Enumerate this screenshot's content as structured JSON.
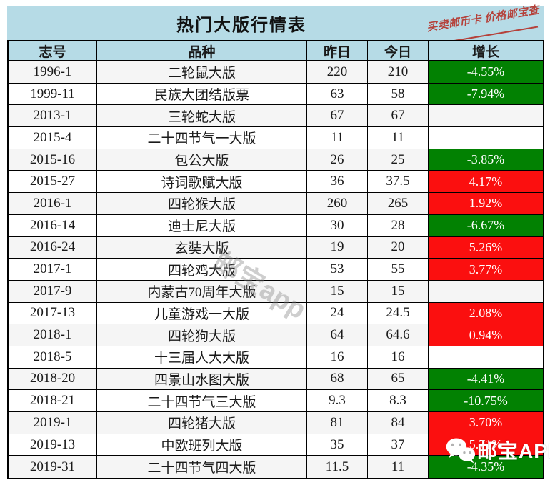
{
  "title": "热门大版行情表",
  "ad_text": "买卖邮币卡 价格邮宝查",
  "watermark_center": "邮宝app",
  "watermark_corner": "邮宝APP",
  "colors": {
    "header_bg": "#b6dbe6",
    "rise_red": "#fb0f0f",
    "fall_green": "#028102",
    "ad_red": "#b5413a",
    "stripe": "#f5f5f5"
  },
  "chart_data": {
    "type": "table",
    "title": "热门大版行情表",
    "columns": [
      "志号",
      "品种",
      "昨日",
      "今日",
      "增长"
    ],
    "rows": [
      {
        "code": "1996-1",
        "variety": "二轮鼠大版",
        "yesterday": "220",
        "today": "210",
        "growth": "-4.55%",
        "trend": "fall"
      },
      {
        "code": "1999-11",
        "variety": "民族大团结版票",
        "yesterday": "63",
        "today": "58",
        "growth": "-7.94%",
        "trend": "fall"
      },
      {
        "code": "2013-1",
        "variety": "三轮蛇大版",
        "yesterday": "67",
        "today": "67",
        "growth": "",
        "trend": "flat"
      },
      {
        "code": "2015-4",
        "variety": "二十四节气一大版",
        "yesterday": "11",
        "today": "11",
        "growth": "",
        "trend": "flat"
      },
      {
        "code": "2015-16",
        "variety": "包公大版",
        "yesterday": "26",
        "today": "25",
        "growth": "-3.85%",
        "trend": "fall"
      },
      {
        "code": "2015-27",
        "variety": "诗词歌赋大版",
        "yesterday": "36",
        "today": "37.5",
        "growth": "4.17%",
        "trend": "rise"
      },
      {
        "code": "2016-1",
        "variety": "四轮猴大版",
        "yesterday": "260",
        "today": "265",
        "growth": "1.92%",
        "trend": "rise"
      },
      {
        "code": "2016-14",
        "variety": "迪士尼大版",
        "yesterday": "30",
        "today": "28",
        "growth": "-6.67%",
        "trend": "fall"
      },
      {
        "code": "2016-24",
        "variety": "玄奘大版",
        "yesterday": "19",
        "today": "20",
        "growth": "5.26%",
        "trend": "rise"
      },
      {
        "code": "2017-1",
        "variety": "四轮鸡大版",
        "yesterday": "53",
        "today": "55",
        "growth": "3.77%",
        "trend": "rise"
      },
      {
        "code": "2017-9",
        "variety": "内蒙古70周年大版",
        "yesterday": "15",
        "today": "15",
        "growth": "",
        "trend": "flat"
      },
      {
        "code": "2017-13",
        "variety": "儿童游戏一大版",
        "yesterday": "24",
        "today": "24.5",
        "growth": "2.08%",
        "trend": "rise"
      },
      {
        "code": "2018-1",
        "variety": "四轮狗大版",
        "yesterday": "64",
        "today": "64.6",
        "growth": "0.94%",
        "trend": "rise"
      },
      {
        "code": "2018-5",
        "variety": "十三届人大大版",
        "yesterday": "16",
        "today": "16",
        "growth": "",
        "trend": "flat"
      },
      {
        "code": "2018-20",
        "variety": "四景山水图大版",
        "yesterday": "68",
        "today": "65",
        "growth": "-4.41%",
        "trend": "fall"
      },
      {
        "code": "2018-21",
        "variety": "二十四节气三大版",
        "yesterday": "9.3",
        "today": "8.3",
        "growth": "-10.75%",
        "trend": "fall"
      },
      {
        "code": "2019-1",
        "variety": "四轮猪大版",
        "yesterday": "81",
        "today": "84",
        "growth": "3.70%",
        "trend": "rise"
      },
      {
        "code": "2019-13",
        "variety": "中欧班列大版",
        "yesterday": "35",
        "today": "37",
        "growth": "5.71%",
        "trend": "rise"
      },
      {
        "code": "2019-31",
        "variety": "二十四节气四大版",
        "yesterday": "11.5",
        "today": "11",
        "growth": "-4.35%",
        "trend": "fall"
      }
    ]
  }
}
